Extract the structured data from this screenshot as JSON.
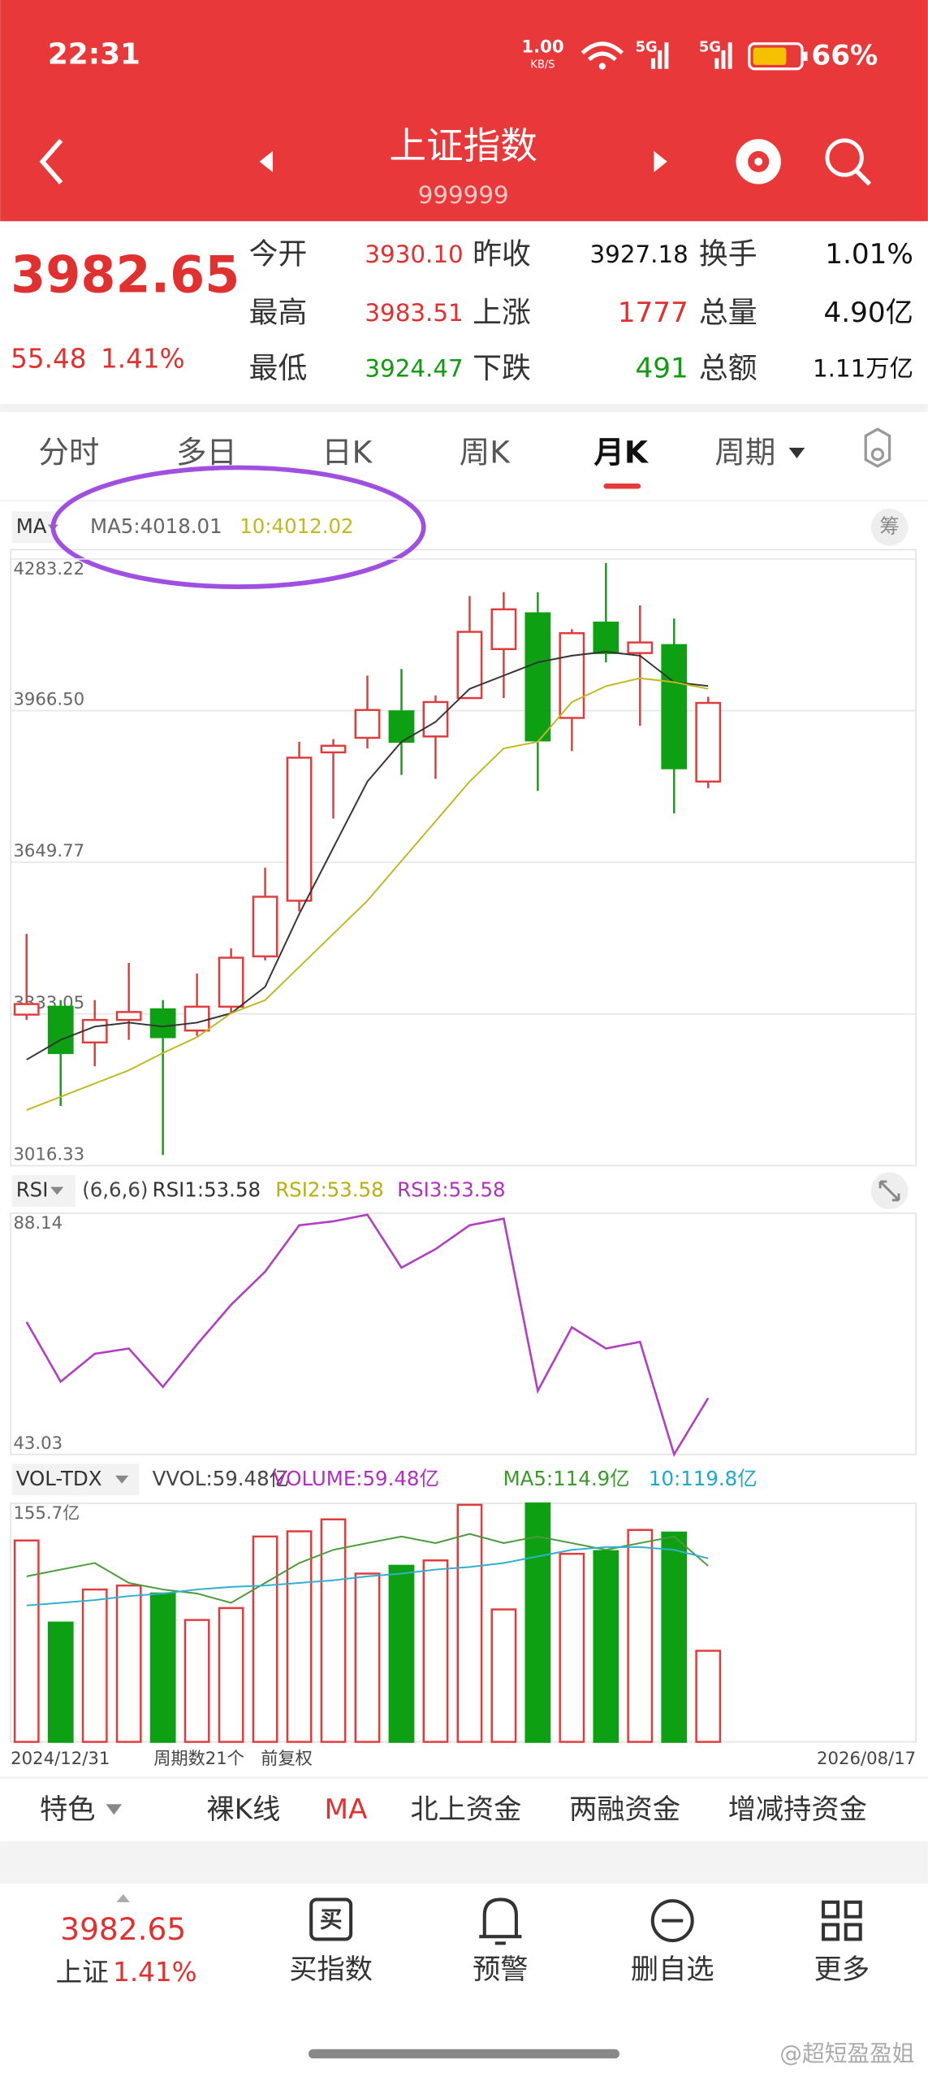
{
  "status_bar": {
    "time": "22:31",
    "speed": "1.00",
    "speed_unit": "KB/S",
    "network": [
      "5G",
      "5G"
    ],
    "battery": "66%"
  },
  "header": {
    "title": "上证指数",
    "code": "999999"
  },
  "quote": {
    "price": "3982.65",
    "change": "55.48",
    "change_pct": "1.41%",
    "fields": [
      {
        "label": "今开",
        "value": "3930.10",
        "color": "#e03030"
      },
      {
        "label": "昨收",
        "value": "3927.18",
        "color": "#111111"
      },
      {
        "label": "换手",
        "value": "1.01%",
        "color": "#111111"
      },
      {
        "label": "最高",
        "value": "3983.51",
        "color": "#e03030"
      },
      {
        "label": "上涨",
        "value": "1777",
        "color": "#e03030"
      },
      {
        "label": "总量",
        "value": "4.90亿",
        "color": "#111111"
      },
      {
        "label": "最低",
        "value": "3924.47",
        "color": "#129a12"
      },
      {
        "label": "下跌",
        "value": "491",
        "color": "#129a12"
      },
      {
        "label": "总额",
        "value": "1.11万亿",
        "color": "#111111"
      }
    ]
  },
  "tabs": {
    "items": [
      "分时",
      "多日",
      "日K",
      "周K",
      "月K",
      "周期"
    ],
    "active": 4
  },
  "kline": {
    "button": "MA",
    "ma5_label": "MA5:4018.01",
    "ma10_label": "10:4012.02",
    "badge": "筹",
    "ylim": [
      3016.33,
      4283.22
    ],
    "yticks": [
      4283.22,
      {
        "value": 3966.5,
        "label": "3966.50"
      },
      3649.77,
      3333.05,
      3016.33
    ],
    "up_color": "#e03a3a",
    "down_color": "#0ca012",
    "ma5_color": "#333333",
    "ma10_color": "#c2b820",
    "open": [
      3331.7,
      3348.3,
      3273.6,
      3320.6,
      3342.8,
      3298.5,
      3348.3,
      3453.4,
      3569.6,
      3879.4,
      3909.8,
      3965.1,
      3912.6,
      3992.8,
      4095.1,
      4169.8,
      3951.3,
      4150.4,
      4086.8,
      4103.4,
      3818.5
    ],
    "high": [
      3500.4,
      3362.1,
      3362.1,
      3439.6,
      3362.1,
      3417.4,
      3470.0,
      3638.7,
      3901.5,
      3907.0,
      4039.8,
      4053.6,
      3998.3,
      4205.8,
      4214.0,
      4214.0,
      4136.6,
      4274.9,
      4186.4,
      4158.7,
      3995.5
    ],
    "low": [
      3320.6,
      3140.8,
      3223.8,
      3279.1,
      3038.5,
      3287.4,
      3334.5,
      3445.1,
      3547.4,
      3741.1,
      3887.7,
      3832.3,
      3824.0,
      3992.8,
      3992.8,
      3799.1,
      3882.1,
      4067.5,
      3934.7,
      3752.1,
      3804.7
    ],
    "close": [
      3353.8,
      3251.5,
      3320.6,
      3337.2,
      3284.7,
      3348.3,
      3450.6,
      3577.9,
      3868.3,
      3893.2,
      3967.9,
      3901.5,
      3984.5,
      4131.1,
      4178.1,
      3904.3,
      4128.3,
      4086.8,
      4108.9,
      3846.2,
      3982.65
    ],
    "ma5": [
      3237.7,
      3279.1,
      3306.8,
      3315.1,
      3306.8,
      3315.1,
      3334.5,
      3389.8,
      3541.9,
      3680.2,
      3818.5,
      3901.5,
      3943.0,
      4012.1,
      4039.8,
      4067.5,
      4081.3,
      4089.6,
      4081.3,
      4026.0,
      4018.01
    ],
    "ma10": [
      3132.5,
      3160.2,
      3187.9,
      3215.5,
      3251.5,
      3284.7,
      3334.5,
      3362.1,
      3431.3,
      3500.4,
      3569.6,
      3652.6,
      3735.5,
      3818.5,
      3887.7,
      3901.5,
      3984.5,
      4017.7,
      4034.3,
      4026.0,
      4012.02
    ]
  },
  "rsi": {
    "button": "RSI",
    "params": "(6,6,6)",
    "labels": [
      {
        "text": "RSI1:53.58",
        "color": "#333333"
      },
      {
        "text": "RSI2:53.58",
        "color": "#b8b010"
      },
      {
        "text": "RSI3:53.58",
        "color": "#b030c0"
      }
    ],
    "ylim": [
      43.03,
      88.14
    ],
    "yticks": [
      88.14,
      43.03
    ],
    "color": "#b040c0",
    "values": [
      67.81,
      56.66,
      61.86,
      62.85,
      55.67,
      63.6,
      71.03,
      77.23,
      85.91,
      86.65,
      87.89,
      77.98,
      81.45,
      85.91,
      87.15,
      54.92,
      66.82,
      62.85,
      64.09,
      43.03,
      53.58
    ]
  },
  "vol": {
    "button": "VOL-TDX",
    "labels": [
      {
        "text": "VVOL:59.48亿",
        "color": "#444444"
      },
      {
        "text": "VOLUME:59.48亿",
        "color": "#b030c0"
      },
      {
        "text": "MA5:114.9亿",
        "color": "#3a9a2a"
      },
      {
        "text": "10:119.8亿",
        "color": "#20a8c8"
      }
    ],
    "ylim": [
      0,
      155.7
    ],
    "yticks": [
      {
        "value": 155.7,
        "label": "155.7亿"
      }
    ],
    "ma5_color": "#4a9a3a",
    "ma10_color": "#30b0d0",
    "values": [
      131.5,
      77.9,
      99.5,
      102.1,
      96.9,
      79.6,
      87.4,
      134.1,
      137.5,
      145.3,
      109.9,
      115.0,
      118.5,
      154.8,
      86.5,
      155.7,
      122.8,
      124.6,
      138.4,
      136.7,
      59.48
    ],
    "ma5": [
      108.1,
      112.5,
      116.8,
      103.8,
      99.5,
      96.9,
      90.8,
      103.8,
      116.8,
      125.4,
      129.8,
      134.1,
      129.8,
      135.8,
      129.8,
      134.1,
      129.8,
      125.4,
      129.8,
      134.1,
      114.9
    ],
    "ma10": [
      89.1,
      90.8,
      92.6,
      95.2,
      96.9,
      99.5,
      101.2,
      102.1,
      103.8,
      105.5,
      108.1,
      109.9,
      112.5,
      114.2,
      116.8,
      121.1,
      125.4,
      127.2,
      127.2,
      125.4,
      119.8
    ],
    "footer": [
      "2024/12/31",
      "周期数21个",
      "前复权",
      "2026/08/17"
    ]
  },
  "bottom_tabs": {
    "items": [
      "特色",
      "裸K线",
      "MA",
      "北上资金",
      "两融资金",
      "增减持资金"
    ],
    "active": 2
  },
  "bottom_nav": {
    "price": "3982.65",
    "name": "上证",
    "change_pct": "1.41%",
    "buy_icon": "买",
    "items": [
      "买指数",
      "预警",
      "删自选",
      "更多"
    ]
  },
  "watermark": "@超短盈盈姐"
}
